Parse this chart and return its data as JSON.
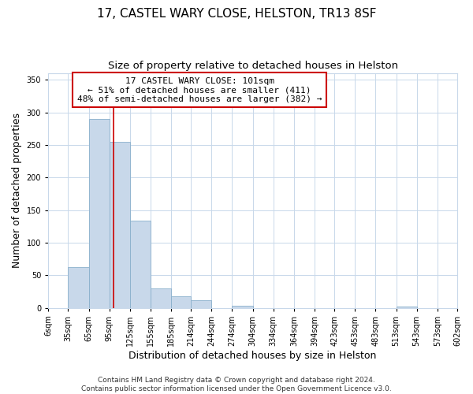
{
  "title": "17, CASTEL WARY CLOSE, HELSTON, TR13 8SF",
  "subtitle": "Size of property relative to detached houses in Helston",
  "xlabel": "Distribution of detached houses by size in Helston",
  "ylabel": "Number of detached properties",
  "bin_edges": [
    6,
    35,
    65,
    95,
    125,
    155,
    185,
    214,
    244,
    274,
    304,
    334,
    364,
    394,
    423,
    453,
    483,
    513,
    543,
    573,
    602
  ],
  "bin_heights": [
    0,
    62,
    290,
    255,
    134,
    30,
    17,
    11,
    0,
    3,
    0,
    0,
    0,
    0,
    0,
    0,
    0,
    2,
    0,
    0
  ],
  "bar_color": "#c8d8ea",
  "bar_edge_color": "#8ab0cc",
  "property_line_x": 101,
  "property_line_color": "#cc0000",
  "annotation_text": "17 CASTEL WARY CLOSE: 101sqm\n← 51% of detached houses are smaller (411)\n48% of semi-detached houses are larger (382) →",
  "annotation_box_edgecolor": "#cc0000",
  "annotation_text_color": "#000000",
  "ylim": [
    0,
    360
  ],
  "yticks": [
    0,
    50,
    100,
    150,
    200,
    250,
    300,
    350
  ],
  "tick_labels": [
    "6sqm",
    "35sqm",
    "65sqm",
    "95sqm",
    "125sqm",
    "155sqm",
    "185sqm",
    "214sqm",
    "244sqm",
    "274sqm",
    "304sqm",
    "334sqm",
    "364sqm",
    "394sqm",
    "423sqm",
    "453sqm",
    "483sqm",
    "513sqm",
    "543sqm",
    "573sqm",
    "602sqm"
  ],
  "footer_line1": "Contains HM Land Registry data © Crown copyright and database right 2024.",
  "footer_line2": "Contains public sector information licensed under the Open Government Licence v3.0.",
  "background_color": "#ffffff",
  "grid_color": "#c8d8ea",
  "title_fontsize": 11,
  "subtitle_fontsize": 9.5,
  "axis_label_fontsize": 9,
  "tick_fontsize": 7,
  "annotation_fontsize": 8,
  "footer_fontsize": 6.5
}
